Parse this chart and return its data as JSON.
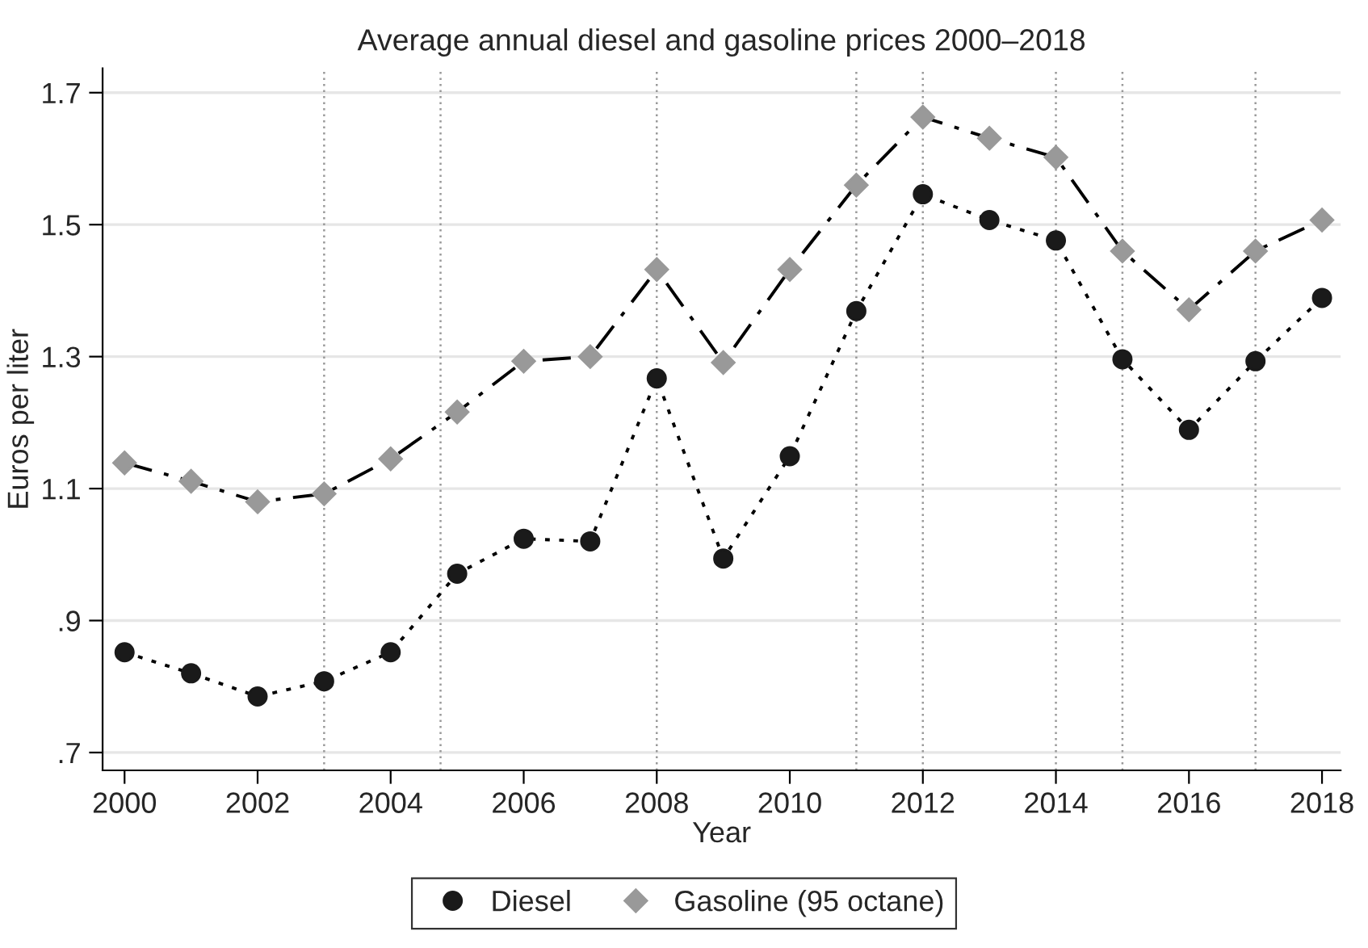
{
  "chart_data": {
    "type": "line",
    "title": "Average annual diesel and gasoline prices 2000–2018",
    "xlabel": "Year",
    "ylabel": "Euros per liter",
    "x": [
      2000,
      2001,
      2002,
      2003,
      2004,
      2005,
      2006,
      2007,
      2008,
      2009,
      2010,
      2011,
      2012,
      2013,
      2014,
      2015,
      2016,
      2017,
      2018
    ],
    "series": [
      {
        "name": "Diesel",
        "color": "#1a1a1a",
        "marker": "circle",
        "line_style": "dotted",
        "values": [
          0.852,
          0.82,
          0.785,
          0.808,
          0.852,
          0.971,
          1.024,
          1.02,
          1.267,
          0.994,
          1.149,
          1.369,
          1.546,
          1.507,
          1.476,
          1.296,
          1.189,
          1.293,
          1.389
        ]
      },
      {
        "name": "Gasoline (95 octane)",
        "color": "#999999",
        "marker": "diamond",
        "line_style": "dashed",
        "values": [
          1.139,
          1.111,
          1.08,
          1.092,
          1.145,
          1.216,
          1.293,
          1.3,
          1.432,
          1.291,
          1.432,
          1.56,
          1.663,
          1.631,
          1.602,
          1.46,
          1.371,
          1.46,
          1.507
        ]
      }
    ],
    "xlim": [
      1999.67,
      2018.28
    ],
    "xticks": [
      2000,
      2002,
      2004,
      2006,
      2008,
      2010,
      2012,
      2014,
      2016,
      2018
    ],
    "ylim": [
      0.673,
      1.737
    ],
    "yticks": [
      {
        "value": 0.7,
        "label": ".7"
      },
      {
        "value": 0.9,
        "label": ".9"
      },
      1.1,
      1.3,
      1.5,
      1.7
    ],
    "ref_lines": [
      {
        "axis": "x",
        "value": 2003,
        "color": "#999999",
        "line_style": "dotted"
      },
      {
        "axis": "x",
        "value": 2004.75,
        "color": "#999999",
        "line_style": "dotted"
      },
      {
        "axis": "x",
        "value": 2008,
        "color": "#999999",
        "line_style": "dotted"
      },
      {
        "axis": "x",
        "value": 2011,
        "color": "#999999",
        "line_style": "dotted"
      },
      {
        "axis": "x",
        "value": 2012,
        "color": "#999999",
        "line_style": "dotted"
      },
      {
        "axis": "x",
        "value": 2014,
        "color": "#999999",
        "line_style": "dotted"
      },
      {
        "axis": "x",
        "value": 2015,
        "color": "#999999",
        "line_style": "dotted"
      },
      {
        "axis": "x",
        "value": 2017,
        "color": "#999999",
        "line_style": "dotted"
      }
    ],
    "grid": "y",
    "legend": "bottom"
  }
}
